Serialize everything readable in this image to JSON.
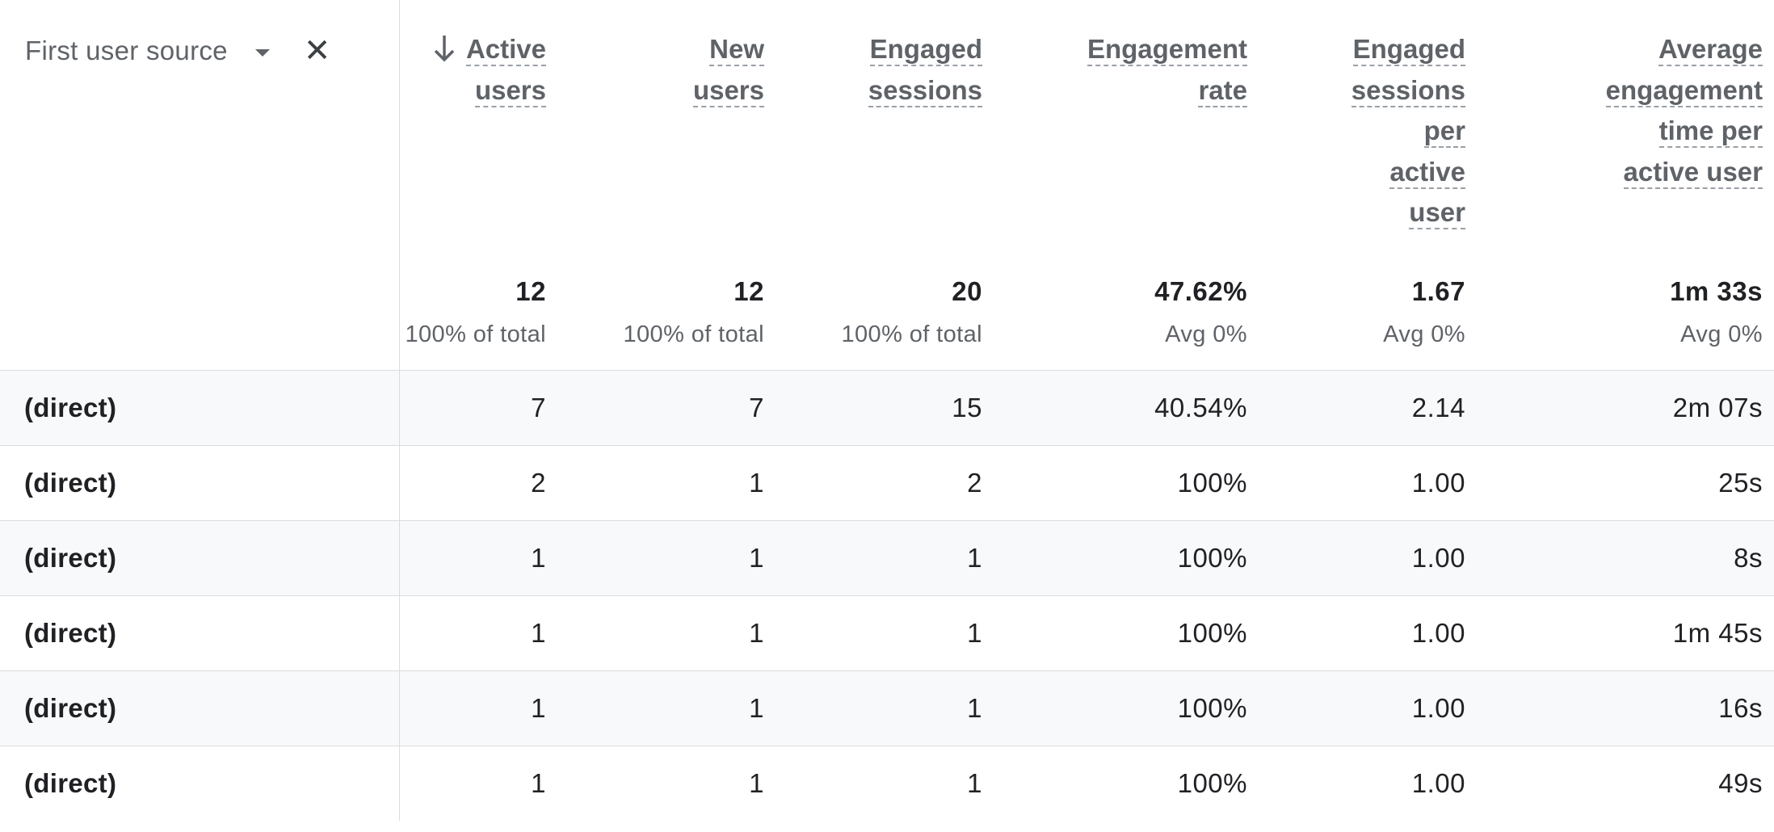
{
  "dimension": {
    "label": "First user source",
    "dropdown_icon": "caret-down-icon",
    "remove_icon": "close-icon",
    "remove_glyph": "✕"
  },
  "sort": {
    "column": "active_users",
    "direction": "descending",
    "icon": "arrow-down-icon"
  },
  "columns": [
    {
      "key": "active_users",
      "label_lines": [
        "Active",
        "users"
      ],
      "total": "12",
      "sub": "100% of total"
    },
    {
      "key": "new_users",
      "label_lines": [
        "New",
        "users"
      ],
      "total": "12",
      "sub": "100% of total"
    },
    {
      "key": "engaged_sessions",
      "label_lines": [
        "Engaged",
        "sessions"
      ],
      "total": "20",
      "sub": "100% of total"
    },
    {
      "key": "engagement_rate",
      "label_lines": [
        "Engagement",
        "rate"
      ],
      "total": "47.62%",
      "sub": "Avg 0%"
    },
    {
      "key": "engaged_sessions_per_user",
      "label_lines": [
        "Engaged",
        "sessions",
        "per",
        "active",
        "user"
      ],
      "total": "1.67",
      "sub": "Avg 0%"
    },
    {
      "key": "avg_engagement_time",
      "label_lines": [
        "Average",
        "engagement",
        "time per",
        "active user"
      ],
      "total": "1m 33s",
      "sub": "Avg 0%"
    }
  ],
  "rows": [
    {
      "dimension": "(direct)",
      "values": [
        "7",
        "7",
        "15",
        "40.54%",
        "2.14",
        "2m 07s"
      ]
    },
    {
      "dimension": "(direct)",
      "values": [
        "2",
        "1",
        "2",
        "100%",
        "1.00",
        "25s"
      ]
    },
    {
      "dimension": "(direct)",
      "values": [
        "1",
        "1",
        "1",
        "100%",
        "1.00",
        "8s"
      ]
    },
    {
      "dimension": "(direct)",
      "values": [
        "1",
        "1",
        "1",
        "100%",
        "1.00",
        "1m 45s"
      ]
    },
    {
      "dimension": "(direct)",
      "values": [
        "1",
        "1",
        "1",
        "100%",
        "1.00",
        "16s"
      ]
    },
    {
      "dimension": "(direct)",
      "values": [
        "1",
        "1",
        "1",
        "100%",
        "1.00",
        "49s"
      ]
    }
  ],
  "colors": {
    "border": "#dadce0",
    "header_text": "#5f6368",
    "body_text": "#202124",
    "striped_row": "#f8f9fa"
  }
}
